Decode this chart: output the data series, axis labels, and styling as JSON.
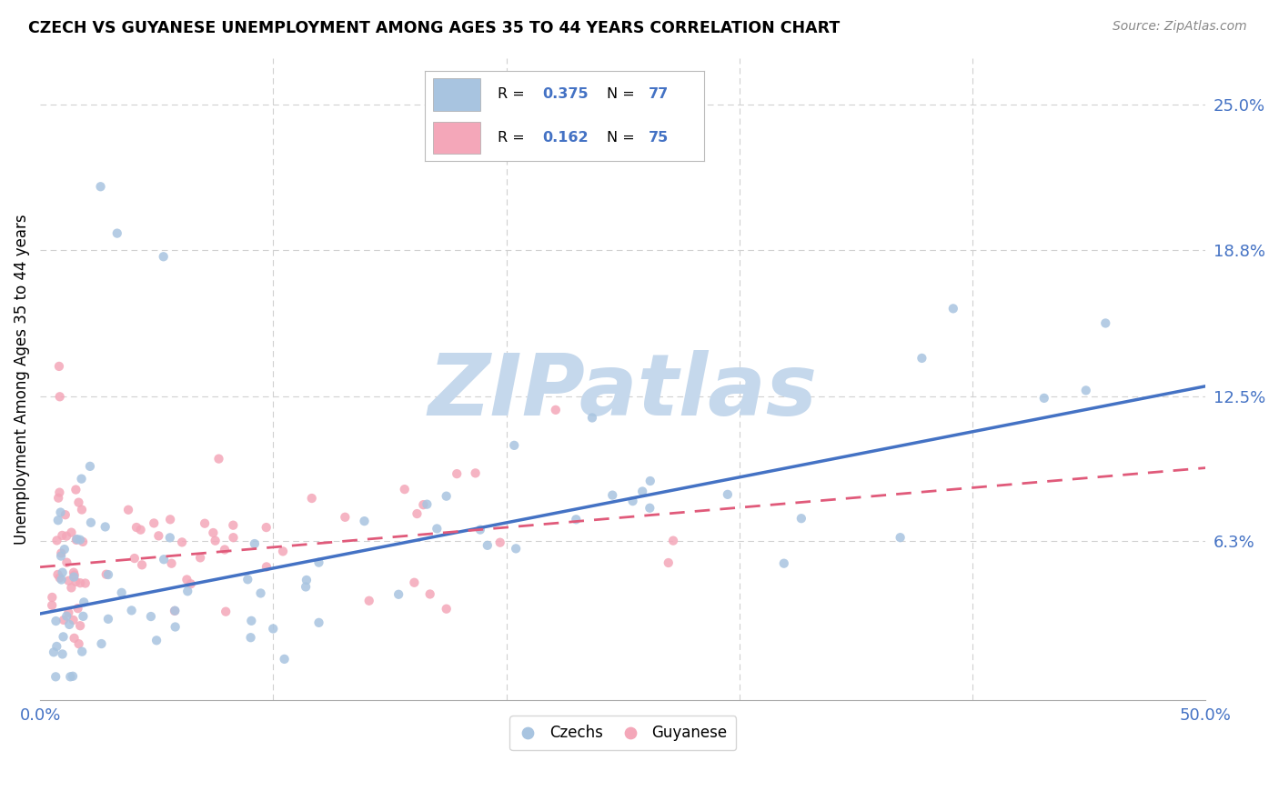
{
  "title": "CZECH VS GUYANESE UNEMPLOYMENT AMONG AGES 35 TO 44 YEARS CORRELATION CHART",
  "source": "Source: ZipAtlas.com",
  "ylabel": "Unemployment Among Ages 35 to 44 years",
  "xlim": [
    0.0,
    0.5
  ],
  "ylim": [
    -0.005,
    0.27
  ],
  "ytick_right_vals": [
    0.063,
    0.125,
    0.188,
    0.25
  ],
  "ytick_right_labels": [
    "6.3%",
    "12.5%",
    "18.8%",
    "25.0%"
  ],
  "czech_color": "#a8c4e0",
  "guyanese_color": "#f4a7b9",
  "czech_line_color": "#4472c4",
  "guyanese_line_color": "#e05a7a",
  "background_color": "#ffffff",
  "grid_color": "#d0d0d0",
  "watermark_color": "#c5d8ec",
  "czech_R": 0.375,
  "czech_N": 77,
  "guyanese_R": 0.162,
  "guyanese_N": 75,
  "czech_intercept": 0.032,
  "czech_slope": 0.195,
  "guyanese_intercept": 0.052,
  "guyanese_slope": 0.085
}
